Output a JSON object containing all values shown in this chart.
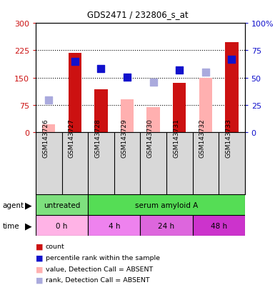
{
  "title": "GDS2471 / 232806_s_at",
  "samples": [
    "GSM143726",
    "GSM143727",
    "GSM143728",
    "GSM143729",
    "GSM143730",
    "GSM143731",
    "GSM143732",
    "GSM143733"
  ],
  "red_bars": [
    null,
    218,
    118,
    null,
    null,
    135,
    null,
    247
  ],
  "pink_bars": [
    22,
    null,
    null,
    90,
    70,
    null,
    150,
    null
  ],
  "blue_squares_left": [
    null,
    195,
    175,
    152,
    null,
    170,
    null,
    200
  ],
  "light_blue_squares_left": [
    88,
    null,
    null,
    null,
    138,
    null,
    165,
    null
  ],
  "left_ylim": [
    0,
    300
  ],
  "right_ylim": [
    0,
    100
  ],
  "left_yticks": [
    0,
    75,
    150,
    225,
    300
  ],
  "right_yticks": [
    0,
    25,
    50,
    75,
    100
  ],
  "right_yticklabels": [
    "0",
    "25",
    "50",
    "75",
    "100%"
  ],
  "agent_groups": [
    {
      "label": "untreated",
      "start": 0,
      "end": 2,
      "color": "#7EE07E"
    },
    {
      "label": "serum amyloid A",
      "start": 2,
      "end": 8,
      "color": "#55DD55"
    }
  ],
  "time_colors": [
    "#FFB3E6",
    "#EE82EE",
    "#DD66DD",
    "#CC33CC"
  ],
  "time_groups": [
    {
      "label": "0 h",
      "start": 0,
      "end": 2
    },
    {
      "label": "4 h",
      "start": 2,
      "end": 4
    },
    {
      "label": "24 h",
      "start": 4,
      "end": 6
    },
    {
      "label": "48 h",
      "start": 6,
      "end": 8
    }
  ],
  "red_color": "#CC1111",
  "pink_color": "#FFB0B0",
  "blue_color": "#1111CC",
  "light_blue_color": "#AAAADD",
  "bg_color": "#D8D8D8",
  "chart_bg": "#FFFFFF",
  "legend_labels": [
    "count",
    "percentile rank within the sample",
    "value, Detection Call = ABSENT",
    "rank, Detection Call = ABSENT"
  ]
}
